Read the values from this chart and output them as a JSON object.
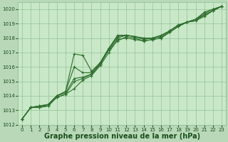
{
  "title": "Graphe pression niveau de la mer (hPa)",
  "background_color": "#b8d8b8",
  "plot_bg_color": "#c8e8c8",
  "grid_color": "#88bb88",
  "line_color": "#2d6e2d",
  "x_hours": [
    0,
    1,
    2,
    3,
    4,
    5,
    6,
    7,
    8,
    9,
    10,
    11,
    12,
    13,
    14,
    15,
    16,
    17,
    18,
    19,
    20,
    21,
    22,
    23
  ],
  "series": [
    [
      1012.4,
      1013.2,
      1013.2,
      1013.3,
      1013.9,
      1014.1,
      1014.5,
      1015.1,
      1015.4,
      1016.1,
      1017.0,
      1017.9,
      1018.0,
      1017.9,
      1017.8,
      1017.9,
      1018.0,
      1018.4,
      1018.8,
      1019.1,
      1019.2,
      1019.5,
      1019.9,
      1020.2
    ],
    [
      1012.4,
      1013.2,
      1013.2,
      1013.3,
      1013.9,
      1014.1,
      1015.0,
      1015.2,
      1015.5,
      1016.2,
      1017.2,
      1017.8,
      1018.1,
      1018.0,
      1017.8,
      1017.9,
      1018.0,
      1018.4,
      1018.8,
      1019.1,
      1019.2,
      1019.6,
      1019.9,
      1020.2
    ],
    [
      1012.4,
      1013.2,
      1013.2,
      1013.4,
      1014.0,
      1014.2,
      1015.2,
      1015.3,
      1015.5,
      1016.2,
      1017.2,
      1018.0,
      1018.2,
      1018.1,
      1017.9,
      1018.0,
      1018.1,
      1018.5,
      1018.9,
      1019.1,
      1019.3,
      1019.6,
      1019.9,
      1020.2
    ],
    [
      1012.4,
      1013.2,
      1013.3,
      1013.4,
      1014.0,
      1014.3,
      1016.0,
      1015.6,
      1015.6,
      1016.3,
      1017.3,
      1018.1,
      1018.2,
      1018.1,
      1018.0,
      1018.0,
      1018.1,
      1018.5,
      1018.9,
      1019.1,
      1019.3,
      1019.7,
      1020.0,
      1020.2
    ],
    [
      1012.4,
      1013.2,
      1013.3,
      1013.4,
      1014.0,
      1014.3,
      1016.9,
      1016.8,
      1015.7,
      1016.3,
      1017.3,
      1018.2,
      1018.2,
      1018.1,
      1018.0,
      1018.0,
      1018.2,
      1018.5,
      1018.9,
      1019.1,
      1019.3,
      1019.8,
      1020.0,
      1020.2
    ]
  ],
  "ylim": [
    1012.0,
    1020.5
  ],
  "yticks": [
    1012,
    1013,
    1014,
    1015,
    1016,
    1017,
    1018,
    1019,
    1020
  ],
  "xlim": [
    -0.5,
    23.5
  ],
  "xticks": [
    0,
    1,
    2,
    3,
    4,
    5,
    6,
    7,
    8,
    9,
    10,
    11,
    12,
    13,
    14,
    15,
    16,
    17,
    18,
    19,
    20,
    21,
    22,
    23
  ],
  "marker": "+",
  "marker_size": 3,
  "line_width": 0.8,
  "title_fontsize": 7,
  "tick_fontsize": 5,
  "title_color": "#1a4d1a",
  "tick_color": "#1a4d1a"
}
